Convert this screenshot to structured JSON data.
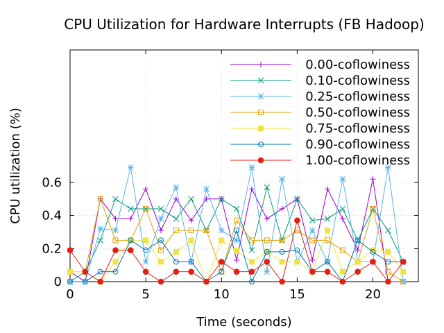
{
  "chart_data": {
    "type": "line",
    "title": "CPU Utilization for Hardware Interrupts (FB Hadoop)",
    "xlabel": "Time (seconds)",
    "ylabel": "CPU utilization (%)",
    "xlim": [
      0,
      23
    ],
    "ylim": [
      0,
      1.4
    ],
    "x_ticks": [
      0,
      5,
      10,
      15,
      20
    ],
    "x_tick_labels": [
      "0",
      "5",
      "10",
      "15",
      "20"
    ],
    "y_ticks": [
      0,
      0.2,
      0.4,
      0.6
    ],
    "y_tick_labels": [
      "0",
      "0.2",
      "0.4",
      "0.6"
    ],
    "grid": true,
    "legend_position": "top-right",
    "x": [
      0,
      1,
      2,
      3,
      4,
      5,
      6,
      7,
      8,
      9,
      10,
      11,
      12,
      13,
      14,
      15,
      16,
      17,
      18,
      19,
      20,
      21,
      22
    ],
    "series": [
      {
        "name": "0.00-coflowiness",
        "color": "#9400d3",
        "marker": "plus",
        "values": [
          0.06,
          0.0,
          0.5,
          0.38,
          0.38,
          0.56,
          0.31,
          0.5,
          0.37,
          0.5,
          0.5,
          0.13,
          0.56,
          0.38,
          0.44,
          0.5,
          0.13,
          0.56,
          0.38,
          0.19,
          0.62,
          0.0,
          0.0
        ]
      },
      {
        "name": "0.10-coflowiness",
        "color": "#009e73",
        "marker": "cross",
        "values": [
          0.0,
          0.06,
          0.25,
          0.5,
          0.44,
          0.44,
          0.44,
          0.38,
          0.5,
          0.31,
          0.5,
          0.44,
          0.19,
          0.57,
          0.25,
          0.5,
          0.37,
          0.38,
          0.44,
          0.25,
          0.44,
          0.31,
          0.12
        ]
      },
      {
        "name": "0.25-coflowiness",
        "color": "#56b4e9",
        "marker": "star",
        "values": [
          0.0,
          0.0,
          0.32,
          0.31,
          0.69,
          0.12,
          0.38,
          0.57,
          0.12,
          0.56,
          0.31,
          0.25,
          0.69,
          0.06,
          0.62,
          0.12,
          0.31,
          0.12,
          0.62,
          0.12,
          0.12,
          0.69,
          0.0
        ]
      },
      {
        "name": "0.50-coflowiness",
        "color": "#e69f00",
        "marker": "square-open",
        "values": [
          0.06,
          0.06,
          0.5,
          0.25,
          0.25,
          0.44,
          0.19,
          0.31,
          0.31,
          0.31,
          0.06,
          0.37,
          0.25,
          0.25,
          0.25,
          0.31,
          0.25,
          0.25,
          0.19,
          0.12,
          0.44,
          0.06,
          0.0
        ]
      },
      {
        "name": "0.75-coflowiness",
        "color": "#f0e442",
        "marker": "square-filled",
        "values": [
          0.06,
          0.06,
          0.0,
          0.12,
          0.25,
          0.25,
          0.12,
          0.18,
          0.25,
          0.0,
          0.25,
          0.19,
          0.12,
          0.18,
          0.12,
          0.12,
          0.06,
          0.31,
          0.06,
          0.12,
          0.19,
          0.18,
          0.06
        ]
      },
      {
        "name": "0.90-coflowiness",
        "color": "#0072b2",
        "marker": "circle-open",
        "values": [
          0.0,
          0.0,
          0.06,
          0.06,
          0.25,
          0.19,
          0.25,
          0.12,
          0.12,
          0.0,
          0.06,
          0.31,
          0.0,
          0.18,
          0.18,
          0.19,
          0.06,
          0.12,
          0.0,
          0.25,
          0.18,
          0.12,
          0.12
        ]
      },
      {
        "name": "1.00-coflowiness",
        "color": "#e51e10",
        "marker": "circle-filled",
        "values": [
          0.19,
          0.06,
          0.0,
          0.19,
          0.19,
          0.06,
          0.0,
          0.06,
          0.06,
          0.0,
          0.12,
          0.06,
          0.06,
          0.12,
          0.0,
          0.37,
          0.06,
          0.06,
          0.0,
          0.06,
          0.12,
          0.0,
          0.12
        ]
      }
    ]
  }
}
